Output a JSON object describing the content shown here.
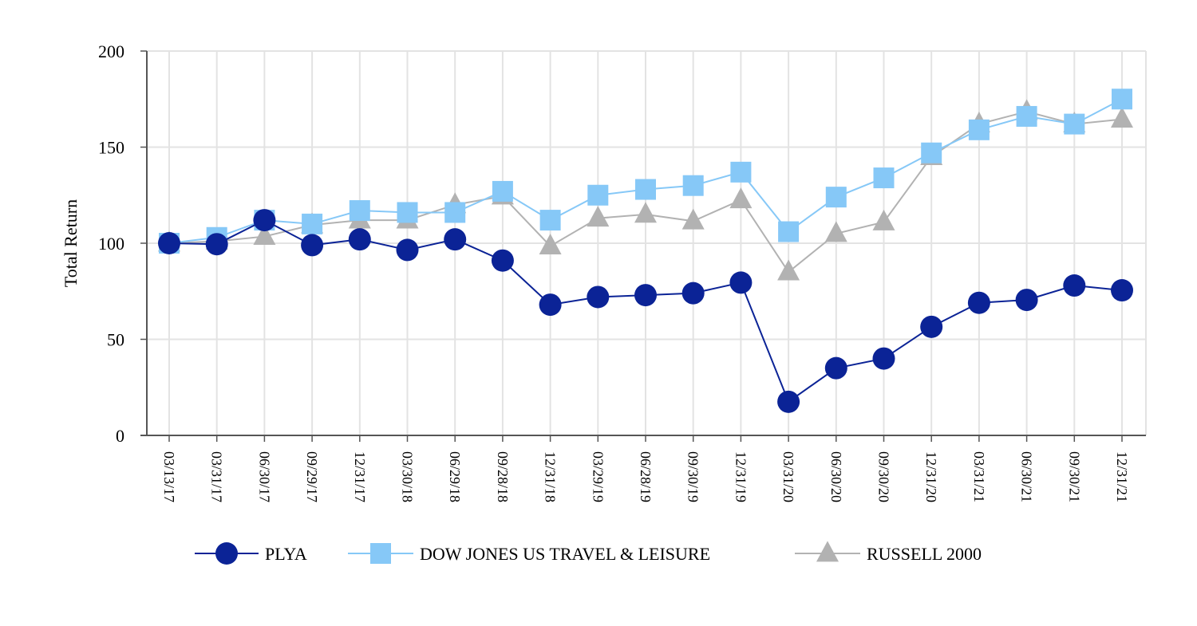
{
  "chart_data": {
    "type": "line",
    "title": "",
    "xlabel": "",
    "ylabel": "Total Return",
    "ylim": [
      0,
      200
    ],
    "yticks": [
      0,
      50,
      100,
      150,
      200
    ],
    "grid": true,
    "legend_position": "bottom",
    "categories": [
      "03/13/17",
      "03/31/17",
      "06/30/17",
      "09/29/17",
      "12/31/17",
      "03/30/18",
      "06/29/18",
      "09/28/18",
      "12/31/18",
      "03/29/19",
      "06/28/19",
      "09/30/19",
      "12/31/19",
      "03/31/20",
      "06/30/20",
      "09/30/20",
      "12/31/20",
      "03/31/21",
      "06/30/21",
      "09/30/21",
      "12/31/21"
    ],
    "series": [
      {
        "name": "PLYA",
        "marker": "circle",
        "color": "#0b2396",
        "values": [
          100,
          99.5,
          112,
          99,
          102,
          96.5,
          102,
          91,
          68,
          72,
          73,
          74,
          79.5,
          17.5,
          35,
          40,
          56.5,
          69,
          70.5,
          78,
          75.5
        ]
      },
      {
        "name": "DOW JONES US TRAVEL & LEISURE",
        "marker": "square",
        "color": "#86c8f7",
        "values": [
          100,
          103,
          112,
          110,
          117,
          116,
          116,
          127,
          112,
          125,
          128,
          130,
          137,
          106,
          124,
          134,
          147,
          159,
          166,
          162,
          175
        ]
      },
      {
        "name": "RUSSELL 2000",
        "marker": "triangle",
        "color": "#b2b2b2",
        "values": [
          100,
          101,
          103.5,
          109.5,
          112,
          112,
          120,
          124.5,
          98.5,
          113,
          115,
          111.5,
          122.5,
          85,
          105,
          111,
          145,
          162,
          168.5,
          162,
          164.5
        ]
      }
    ]
  }
}
